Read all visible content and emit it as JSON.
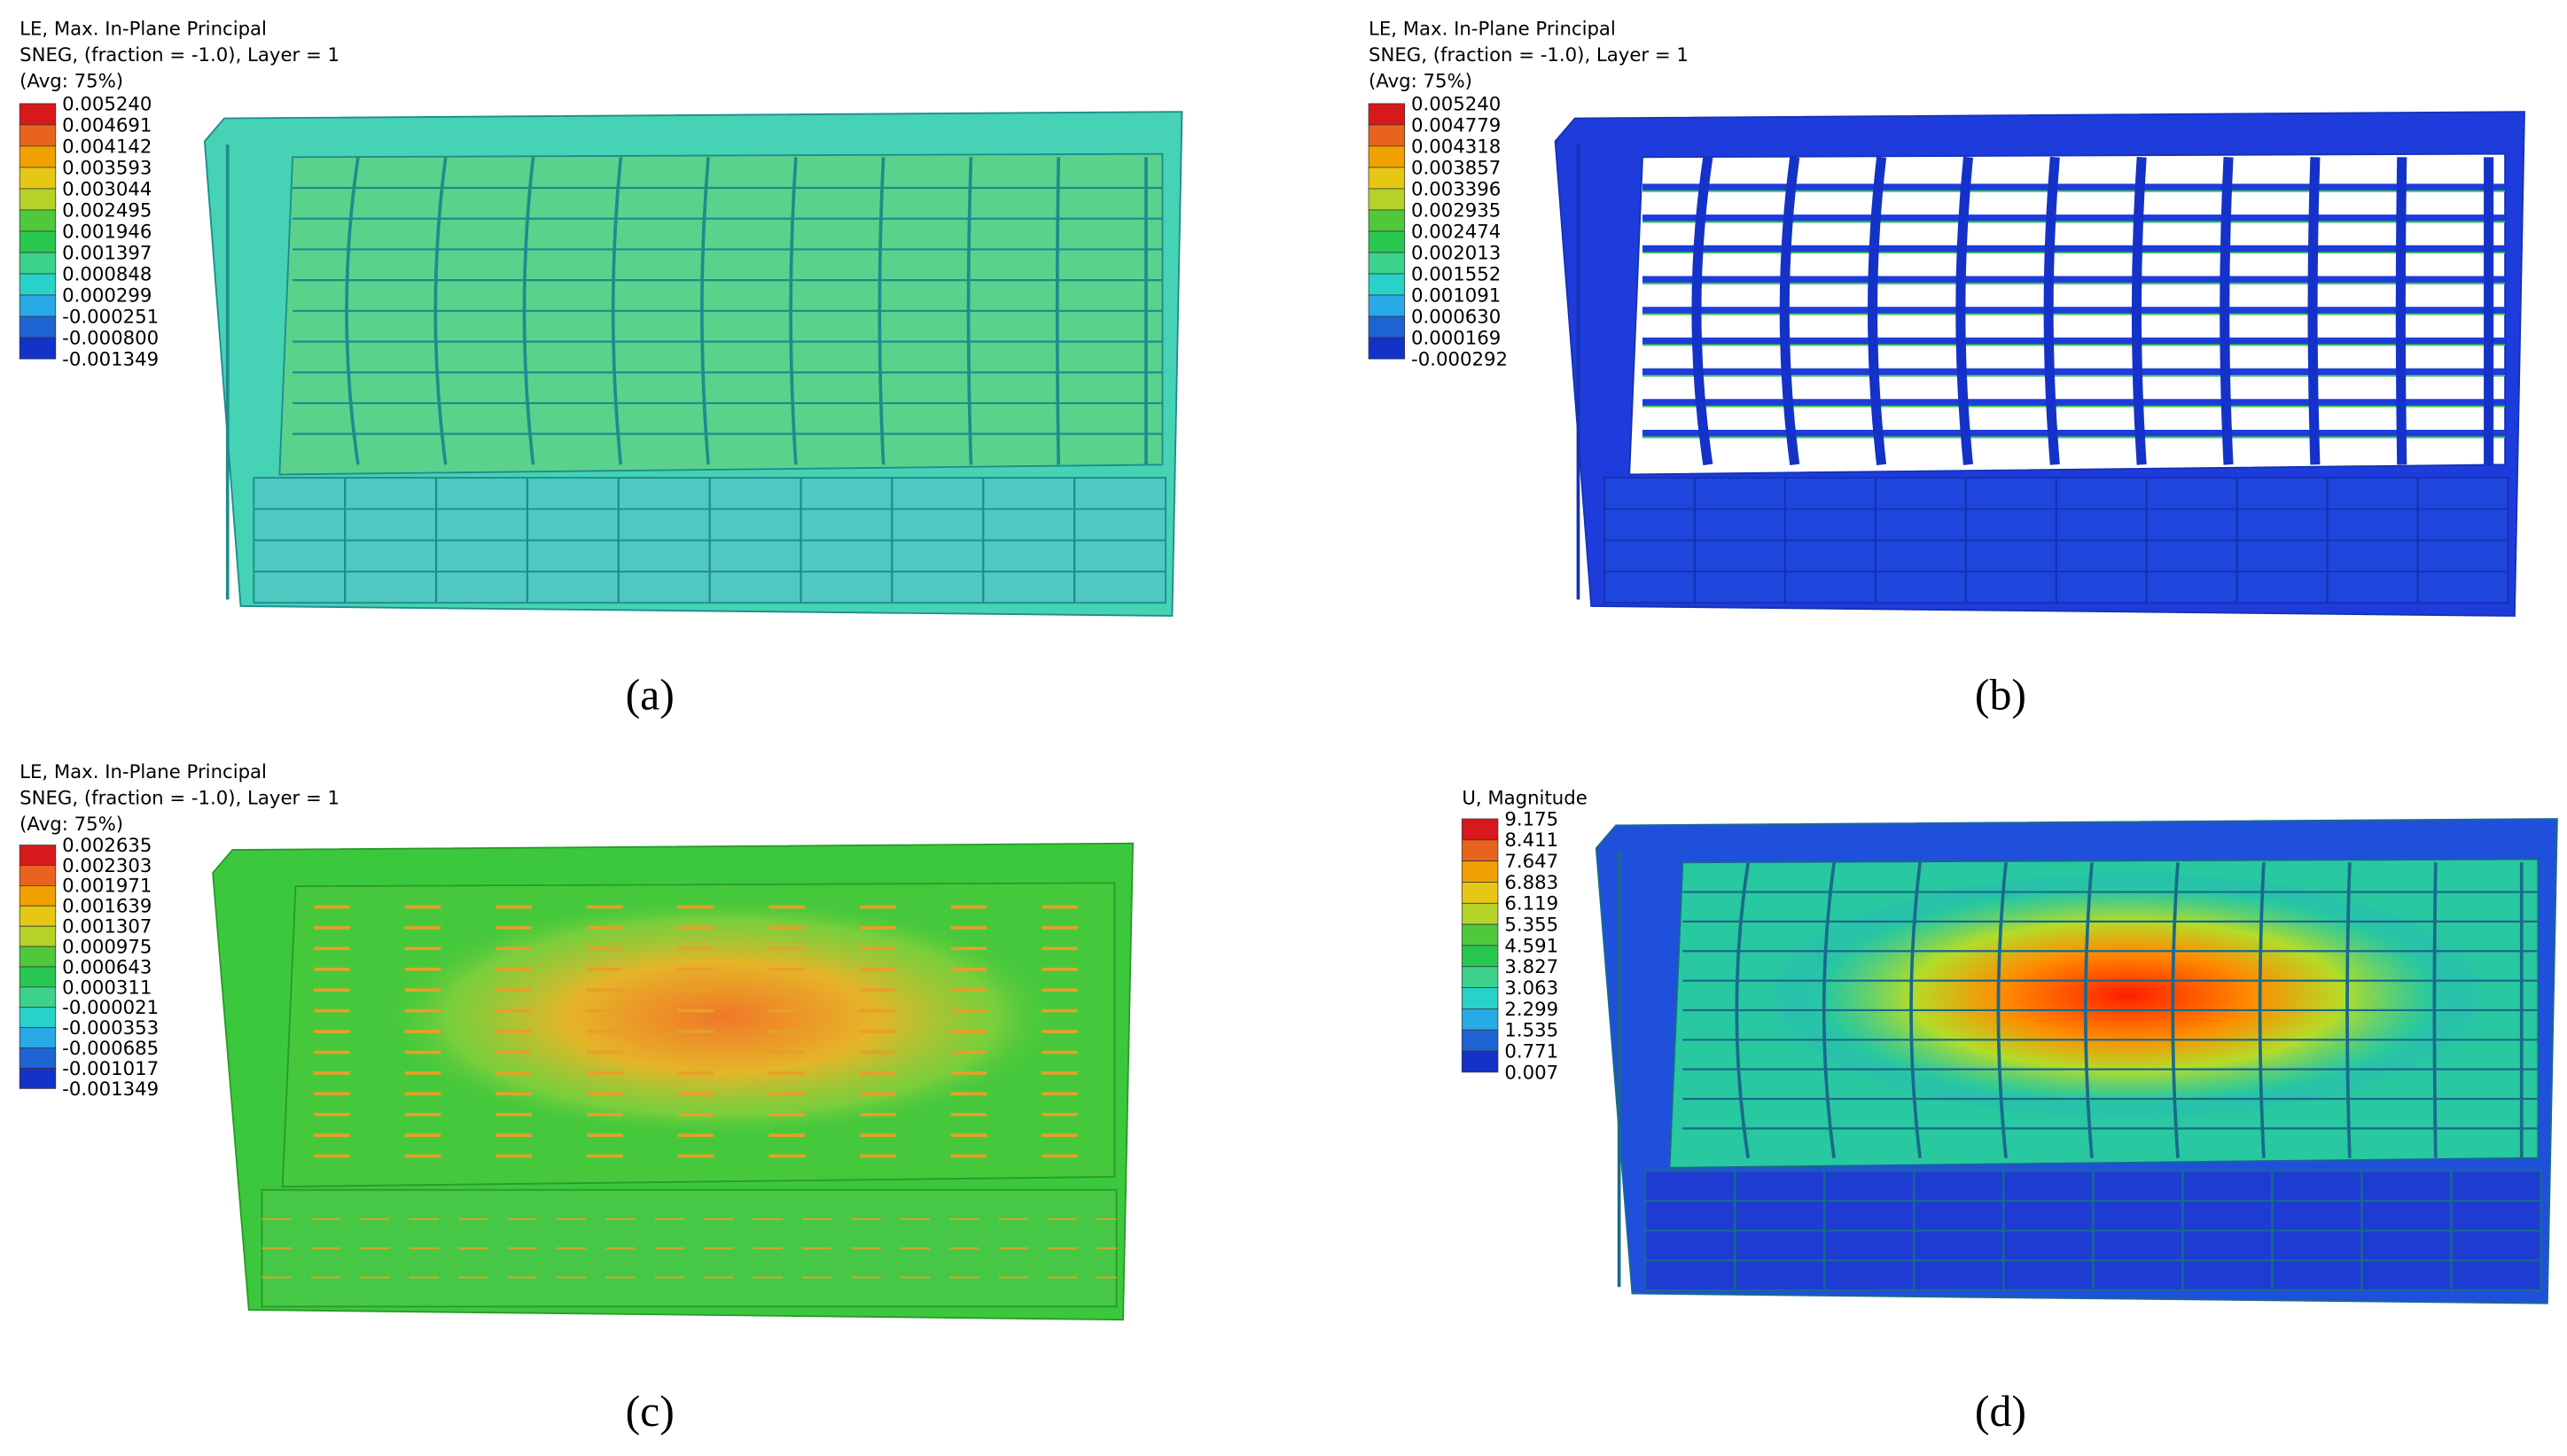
{
  "panels": [
    {
      "legend": {
        "title": [
          "LE, Max. In-Plane Principal",
          "SNEG, (fraction = -1.0), Layer = 1",
          "(Avg: 75%)"
        ],
        "values": [
          "0.005240",
          "0.004691",
          "0.004142",
          "0.003593",
          "0.003044",
          "0.002495",
          "0.001946",
          "0.001397",
          "0.000848",
          "0.000299",
          "-0.000251",
          "-0.000800",
          "-0.001349"
        ]
      },
      "caption": "(a)"
    },
    {
      "legend": {
        "title": [
          "LE, Max. In-Plane Principal",
          "SNEG, (fraction = -1.0), Layer = 1",
          "(Avg: 75%)"
        ],
        "values": [
          "0.005240",
          "0.004779",
          "0.004318",
          "0.003857",
          "0.003396",
          "0.002935",
          "0.002474",
          "0.002013",
          "0.001552",
          "0.001091",
          "0.000630",
          "0.000169",
          "-0.000292"
        ]
      },
      "caption": "(b)"
    },
    {
      "legend": {
        "title": [
          "LE, Max. In-Plane Principal",
          "SNEG, (fraction = -1.0), Layer = 1",
          "(Avg: 75%)"
        ],
        "values": [
          "0.002635",
          "0.002303",
          "0.001971",
          "0.001639",
          "0.001307",
          "0.000975",
          "0.000643",
          "0.000311",
          "-0.000021",
          "-0.000353",
          "-0.000685",
          "-0.001017",
          "-0.001349"
        ]
      },
      "caption": "(c)"
    },
    {
      "legend": {
        "title": [
          "U, Magnitude"
        ],
        "values": [
          "9.175",
          "8.411",
          "7.647",
          "6.883",
          "6.119",
          "5.355",
          "4.591",
          "3.827",
          "3.063",
          "2.299",
          "1.535",
          "0.771",
          "0.007"
        ]
      },
      "caption": "(d)"
    }
  ]
}
